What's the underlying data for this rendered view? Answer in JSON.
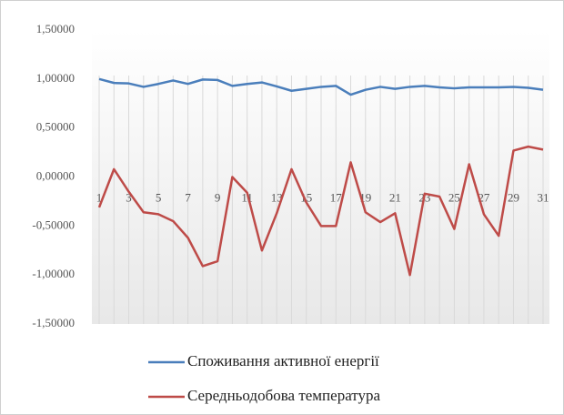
{
  "chart_data": {
    "type": "line",
    "categories": [
      "1",
      null,
      "3",
      null,
      "5",
      null,
      "7",
      null,
      "9",
      null,
      "11",
      null,
      "13",
      null,
      "15",
      null,
      "17",
      null,
      "19",
      null,
      "21",
      null,
      "23",
      null,
      "25",
      null,
      "27",
      null,
      "29",
      null,
      "31"
    ],
    "series": [
      {
        "name": "Споживання активної енергії",
        "color": "#4a7ebb",
        "values": [
          1.0,
          0.96,
          0.955,
          0.92,
          0.95,
          0.985,
          0.95,
          0.995,
          0.99,
          0.93,
          0.95,
          0.965,
          0.925,
          0.88,
          0.9,
          0.92,
          0.93,
          0.84,
          0.89,
          0.92,
          0.9,
          0.92,
          0.93,
          0.915,
          0.905,
          0.915,
          0.915,
          0.915,
          0.92,
          0.91,
          0.89
        ]
      },
      {
        "name": "Середньодобова температура",
        "color": "#be4b48",
        "values": [
          -0.31,
          0.08,
          -0.15,
          -0.36,
          -0.38,
          -0.45,
          -0.62,
          -0.91,
          -0.86,
          0.0,
          -0.16,
          -0.75,
          -0.37,
          0.08,
          -0.26,
          -0.5,
          -0.5,
          0.15,
          -0.36,
          -0.46,
          -0.37,
          -1.0,
          -0.17,
          -0.2,
          -0.53,
          0.13,
          -0.38,
          -0.6,
          0.27,
          0.31,
          0.28
        ]
      }
    ],
    "ylim": [
      -1.5,
      1.5
    ],
    "yticks": [
      {
        "value": 1.5,
        "label": "1,50000"
      },
      {
        "value": 1.0,
        "label": "1,00000"
      },
      {
        "value": 0.5,
        "label": "0,50000"
      },
      {
        "value": 0.0,
        "label": "0,00000"
      },
      {
        "value": -0.5,
        "label": "-0,50000"
      },
      {
        "value": -1.0,
        "label": "-1,00000"
      },
      {
        "value": -1.5,
        "label": "-1,50000"
      }
    ],
    "grid": true
  }
}
